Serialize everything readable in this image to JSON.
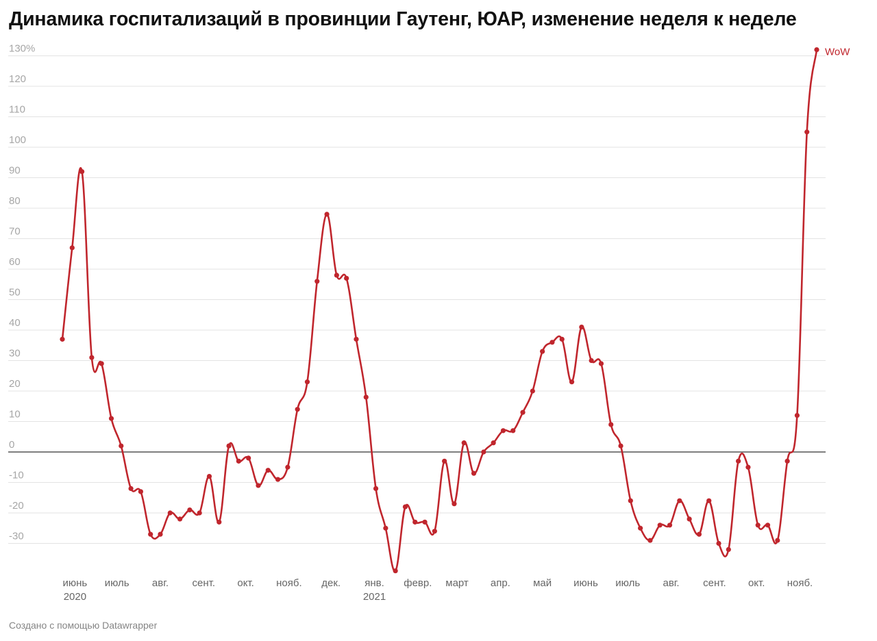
{
  "title": "Динамика госпитализаций в провинции Гаутенг, ЮАР, изменение неделя к неделе",
  "footer": "Создано с помощью Datawrapper",
  "colors": {
    "line": "#c0262d",
    "grid": "#e3e3e3",
    "zero_line": "#333333",
    "tick_text": "#a6a6a6"
  },
  "chart_data": {
    "type": "line",
    "title": "Динамика госпитализаций в провинции Гаутенг, ЮАР, изменение неделя к неделе",
    "xlabel": "",
    "ylabel": "",
    "ylim": [
      -40,
      130
    ],
    "y_ticks": [
      {
        "value": 130,
        "label": "130%"
      },
      {
        "value": 120,
        "label": "120"
      },
      {
        "value": 110,
        "label": "110"
      },
      {
        "value": 100,
        "label": "100"
      },
      {
        "value": 90,
        "label": "90"
      },
      {
        "value": 80,
        "label": "80"
      },
      {
        "value": 70,
        "label": "70"
      },
      {
        "value": 60,
        "label": "60"
      },
      {
        "value": 50,
        "label": "50"
      },
      {
        "value": 40,
        "label": "40"
      },
      {
        "value": 30,
        "label": "30"
      },
      {
        "value": 20,
        "label": "20"
      },
      {
        "value": 10,
        "label": "10"
      },
      {
        "value": 0,
        "label": "0"
      },
      {
        "value": -10,
        "label": "-10"
      },
      {
        "value": -20,
        "label": "-20"
      },
      {
        "value": -30,
        "label": "-30"
      }
    ],
    "x_ticks": [
      {
        "date": "2020-06-01",
        "label": "июнь",
        "sublabel": "2020"
      },
      {
        "date": "2020-07-01",
        "label": "июль"
      },
      {
        "date": "2020-08-01",
        "label": "авг."
      },
      {
        "date": "2020-09-01",
        "label": "сент."
      },
      {
        "date": "2020-10-01",
        "label": "окт."
      },
      {
        "date": "2020-11-01",
        "label": "нояб."
      },
      {
        "date": "2020-12-01",
        "label": "дек."
      },
      {
        "date": "2021-01-01",
        "label": "янв.",
        "sublabel": "2021"
      },
      {
        "date": "2021-02-01",
        "label": "февр."
      },
      {
        "date": "2021-03-01",
        "label": "март"
      },
      {
        "date": "2021-04-01",
        "label": "апр."
      },
      {
        "date": "2021-05-01",
        "label": "май"
      },
      {
        "date": "2021-06-01",
        "label": "июнь"
      },
      {
        "date": "2021-07-01",
        "label": "июль"
      },
      {
        "date": "2021-08-01",
        "label": "авг."
      },
      {
        "date": "2021-09-01",
        "label": "сент."
      },
      {
        "date": "2021-10-01",
        "label": "окт."
      },
      {
        "date": "2021-11-01",
        "label": "нояб."
      }
    ],
    "grid": true,
    "legend": "none",
    "series": [
      {
        "name": "WoW",
        "color": "#c0262d",
        "points": [
          {
            "x": "2020-05-23",
            "y": 37
          },
          {
            "x": "2020-05-30",
            "y": 67
          },
          {
            "x": "2020-06-06",
            "y": 92
          },
          {
            "x": "2020-06-13",
            "y": 31
          },
          {
            "x": "2020-06-20",
            "y": 29
          },
          {
            "x": "2020-06-27",
            "y": 11
          },
          {
            "x": "2020-07-04",
            "y": 2
          },
          {
            "x": "2020-07-11",
            "y": -12
          },
          {
            "x": "2020-07-18",
            "y": -13
          },
          {
            "x": "2020-07-25",
            "y": -27
          },
          {
            "x": "2020-08-01",
            "y": -27
          },
          {
            "x": "2020-08-08",
            "y": -20
          },
          {
            "x": "2020-08-15",
            "y": -22
          },
          {
            "x": "2020-08-22",
            "y": -19
          },
          {
            "x": "2020-08-29",
            "y": -20
          },
          {
            "x": "2020-09-05",
            "y": -8
          },
          {
            "x": "2020-09-12",
            "y": -23
          },
          {
            "x": "2020-09-19",
            "y": 2
          },
          {
            "x": "2020-09-26",
            "y": -3
          },
          {
            "x": "2020-10-03",
            "y": -2
          },
          {
            "x": "2020-10-10",
            "y": -11
          },
          {
            "x": "2020-10-17",
            "y": -6
          },
          {
            "x": "2020-10-24",
            "y": -9
          },
          {
            "x": "2020-10-31",
            "y": -5
          },
          {
            "x": "2020-11-07",
            "y": 14
          },
          {
            "x": "2020-11-14",
            "y": 23
          },
          {
            "x": "2020-11-21",
            "y": 56
          },
          {
            "x": "2020-11-28",
            "y": 78
          },
          {
            "x": "2020-12-05",
            "y": 58
          },
          {
            "x": "2020-12-12",
            "y": 57
          },
          {
            "x": "2020-12-19",
            "y": 37
          },
          {
            "x": "2020-12-26",
            "y": 18
          },
          {
            "x": "2021-01-02",
            "y": -12
          },
          {
            "x": "2021-01-09",
            "y": -25
          },
          {
            "x": "2021-01-16",
            "y": -39
          },
          {
            "x": "2021-01-23",
            "y": -18
          },
          {
            "x": "2021-01-30",
            "y": -23
          },
          {
            "x": "2021-02-06",
            "y": -23
          },
          {
            "x": "2021-02-13",
            "y": -26
          },
          {
            "x": "2021-02-20",
            "y": -3
          },
          {
            "x": "2021-02-27",
            "y": -17
          },
          {
            "x": "2021-03-06",
            "y": 3
          },
          {
            "x": "2021-03-13",
            "y": -7
          },
          {
            "x": "2021-03-20",
            "y": 0
          },
          {
            "x": "2021-03-27",
            "y": 3
          },
          {
            "x": "2021-04-03",
            "y": 7
          },
          {
            "x": "2021-04-10",
            "y": 7
          },
          {
            "x": "2021-04-17",
            "y": 13
          },
          {
            "x": "2021-04-24",
            "y": 20
          },
          {
            "x": "2021-05-01",
            "y": 33
          },
          {
            "x": "2021-05-08",
            "y": 36
          },
          {
            "x": "2021-05-15",
            "y": 37
          },
          {
            "x": "2021-05-22",
            "y": 23
          },
          {
            "x": "2021-05-29",
            "y": 41
          },
          {
            "x": "2021-06-05",
            "y": 30
          },
          {
            "x": "2021-06-12",
            "y": 29
          },
          {
            "x": "2021-06-19",
            "y": 9
          },
          {
            "x": "2021-06-26",
            "y": 2
          },
          {
            "x": "2021-07-03",
            "y": -16
          },
          {
            "x": "2021-07-10",
            "y": -25
          },
          {
            "x": "2021-07-17",
            "y": -29
          },
          {
            "x": "2021-07-24",
            "y": -24
          },
          {
            "x": "2021-07-31",
            "y": -24
          },
          {
            "x": "2021-08-07",
            "y": -16
          },
          {
            "x": "2021-08-14",
            "y": -22
          },
          {
            "x": "2021-08-21",
            "y": -27
          },
          {
            "x": "2021-08-28",
            "y": -16
          },
          {
            "x": "2021-09-04",
            "y": -30
          },
          {
            "x": "2021-09-11",
            "y": -32
          },
          {
            "x": "2021-09-18",
            "y": -3
          },
          {
            "x": "2021-09-25",
            "y": -5
          },
          {
            "x": "2021-10-02",
            "y": -24
          },
          {
            "x": "2021-10-09",
            "y": -24
          },
          {
            "x": "2021-10-16",
            "y": -29
          },
          {
            "x": "2021-10-23",
            "y": -3
          },
          {
            "x": "2021-10-30",
            "y": 12
          },
          {
            "x": "2021-11-06",
            "y": 105
          },
          {
            "x": "2021-11-13",
            "y": 132
          }
        ]
      }
    ]
  }
}
